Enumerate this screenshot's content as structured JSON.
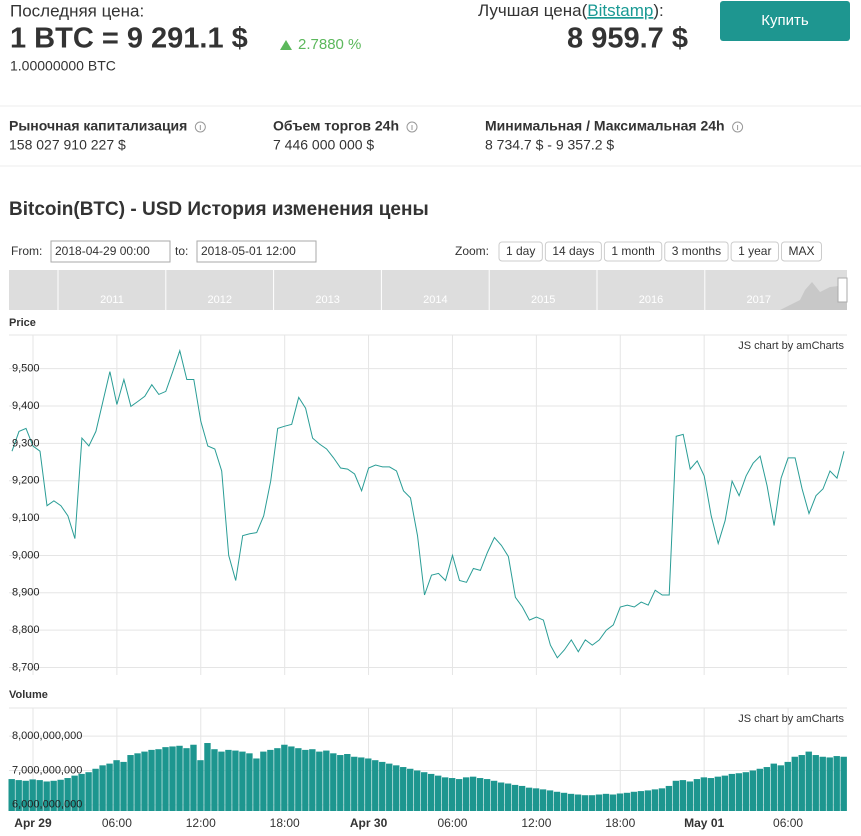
{
  "header": {
    "last_price_label": "Последняя цена:",
    "price": "1 BTC = 9 291.1 $",
    "change": "2.7880 %",
    "amount": "1.00000000 BTC",
    "best_price_prefix": "Лучшая цена(",
    "best_price_exchange": "Bitstamp",
    "best_price_suffix": "):",
    "best_price": "8 959.7 $",
    "buy_button": "Купить"
  },
  "stats": [
    {
      "label": "Рыночная капитализация",
      "value": "158 027 910 227 $"
    },
    {
      "label": "Объем торгов 24h",
      "value": "7 446 000 000 $"
    },
    {
      "label": "Минимальная / Максимальная 24h",
      "value": "8 734.7 $ - 9 357.2 $"
    }
  ],
  "chart_title": "Bitcoin(BTC) - USD История изменения цены",
  "range": {
    "from_label": "From:",
    "from": "2018-04-29 00:00",
    "to_label": "to:",
    "to": "2018-05-01 12:00"
  },
  "zoom": {
    "label": "Zoom:",
    "buttons": [
      "1 day",
      "14 days",
      "1 month",
      "3 months",
      "1 year",
      "MAX"
    ]
  },
  "navigator": {
    "years": [
      "2011",
      "2012",
      "2013",
      "2014",
      "2015",
      "2016",
      "2017"
    ]
  },
  "chart_data": [
    {
      "type": "line",
      "title": "Price",
      "credit": "JS chart by amCharts",
      "color": "#2a9d96",
      "grid": true,
      "categories": [
        null,
        null,
        null,
        "Apr 29",
        null,
        null,
        null,
        null,
        null,
        null,
        null,
        null,
        null,
        null,
        null,
        "06:00",
        null,
        null,
        null,
        null,
        null,
        null,
        null,
        null,
        null,
        null,
        null,
        "12:00",
        null,
        null,
        null,
        null,
        null,
        null,
        null,
        null,
        null,
        null,
        null,
        "18:00",
        null,
        null,
        null,
        null,
        null,
        null,
        null,
        null,
        null,
        null,
        null,
        "Apr 30",
        null,
        null,
        null,
        null,
        null,
        null,
        null,
        null,
        null,
        null,
        null,
        "06:00",
        null,
        null,
        null,
        null,
        null,
        null,
        null,
        null,
        null,
        null,
        null,
        "12:00",
        null,
        null,
        null,
        null,
        null,
        null,
        null,
        null,
        null,
        null,
        null,
        "18:00",
        null,
        null,
        null,
        null,
        null,
        null,
        null,
        null,
        null,
        null,
        null,
        "May 01",
        null,
        null,
        null,
        null,
        null,
        null,
        null,
        null,
        null,
        null,
        null,
        "06:00",
        null,
        null,
        null,
        null,
        null,
        null,
        null,
        null
      ],
      "values": [
        9279,
        9332,
        9340,
        9293,
        9279,
        9133,
        9146,
        9133,
        9106,
        9045,
        9314,
        9293,
        9332,
        9412,
        9492,
        9404,
        9471,
        9399,
        9412,
        9426,
        9457,
        9431,
        9439,
        9492,
        9548,
        9471,
        9471,
        9359,
        9293,
        9285,
        9226,
        9000,
        8933,
        9053,
        9058,
        9061,
        9106,
        9199,
        9340,
        9346,
        9351,
        9423,
        9394,
        9314,
        9298,
        9285,
        9261,
        9234,
        9231,
        9218,
        9173,
        9234,
        9242,
        9237,
        9237,
        9226,
        9173,
        9154,
        9053,
        8894,
        8947,
        8952,
        8933,
        9000,
        8933,
        8928,
        8965,
        8960,
        9008,
        9048,
        9027,
        8997,
        8888,
        8862,
        8827,
        8835,
        8827,
        8760,
        8726,
        8747,
        8774,
        8742,
        8774,
        8760,
        8774,
        8800,
        8814,
        8862,
        8867,
        8862,
        8875,
        8867,
        8907,
        8894,
        8894,
        9319,
        9324,
        9231,
        9253,
        9213,
        9106,
        9032,
        9093,
        9199,
        9160,
        9213,
        9247,
        9266,
        9186,
        9080,
        9207,
        9261,
        9261,
        9178,
        9112,
        9160,
        9178,
        9226,
        9207,
        9279
      ],
      "ylim": [
        8680,
        9590
      ],
      "yticks": [
        {
          "value": 8700,
          "label": "8,700"
        },
        {
          "value": 8800,
          "label": "8,800"
        },
        {
          "value": 8900,
          "label": "8,900"
        },
        {
          "value": 9000,
          "label": "9,000"
        },
        {
          "value": 9100,
          "label": "9,100"
        },
        {
          "value": 9200,
          "label": "9,200"
        },
        {
          "value": 9300,
          "label": "9,300"
        },
        {
          "value": 9400,
          "label": "9,400"
        },
        {
          "value": 9500,
          "label": "9,500"
        }
      ]
    },
    {
      "type": "bar",
      "title": "Volume",
      "credit": "JS chart by amCharts",
      "color": "#1d968f",
      "grid": true,
      "categories": [
        null,
        null,
        null,
        "Apr 29",
        null,
        null,
        null,
        null,
        null,
        null,
        null,
        null,
        null,
        null,
        null,
        "06:00",
        null,
        null,
        null,
        null,
        null,
        null,
        null,
        null,
        null,
        null,
        null,
        "12:00",
        null,
        null,
        null,
        null,
        null,
        null,
        null,
        null,
        null,
        null,
        null,
        "18:00",
        null,
        null,
        null,
        null,
        null,
        null,
        null,
        null,
        null,
        null,
        null,
        "Apr 30",
        null,
        null,
        null,
        null,
        null,
        null,
        null,
        null,
        null,
        null,
        null,
        "06:00",
        null,
        null,
        null,
        null,
        null,
        null,
        null,
        null,
        null,
        null,
        null,
        "12:00",
        null,
        null,
        null,
        null,
        null,
        null,
        null,
        null,
        null,
        null,
        null,
        "18:00",
        null,
        null,
        null,
        null,
        null,
        null,
        null,
        null,
        null,
        null,
        null,
        "May 01",
        null,
        null,
        null,
        null,
        null,
        null,
        null,
        null,
        null,
        null,
        null,
        "06:00",
        null,
        null,
        null,
        null,
        null,
        null,
        null,
        null
      ],
      "values": [
        6750000000,
        6720000000,
        6700000000,
        6740000000,
        6720000000,
        6680000000,
        6700000000,
        6730000000,
        6780000000,
        6850000000,
        6900000000,
        6950000000,
        7050000000,
        7150000000,
        7200000000,
        7300000000,
        7250000000,
        7450000000,
        7500000000,
        7550000000,
        7600000000,
        7620000000,
        7680000000,
        7700000000,
        7720000000,
        7650000000,
        7750000000,
        7300000000,
        7800000000,
        7620000000,
        7550000000,
        7600000000,
        7580000000,
        7550000000,
        7500000000,
        7350000000,
        7550000000,
        7600000000,
        7650000000,
        7750000000,
        7700000000,
        7650000000,
        7600000000,
        7620000000,
        7550000000,
        7580000000,
        7500000000,
        7450000000,
        7480000000,
        7400000000,
        7380000000,
        7350000000,
        7300000000,
        7250000000,
        7200000000,
        7150000000,
        7100000000,
        7050000000,
        7000000000,
        6950000000,
        6900000000,
        6850000000,
        6800000000,
        6780000000,
        6750000000,
        6800000000,
        6820000000,
        6780000000,
        6750000000,
        6700000000,
        6650000000,
        6620000000,
        6580000000,
        6550000000,
        6500000000,
        6480000000,
        6450000000,
        6420000000,
        6380000000,
        6350000000,
        6320000000,
        6300000000,
        6280000000,
        6280000000,
        6300000000,
        6320000000,
        6300000000,
        6330000000,
        6350000000,
        6380000000,
        6400000000,
        6420000000,
        6450000000,
        6480000000,
        6550000000,
        6700000000,
        6720000000,
        6680000000,
        6750000000,
        6800000000,
        6780000000,
        6820000000,
        6850000000,
        6900000000,
        6920000000,
        6950000000,
        7000000000,
        7050000000,
        7100000000,
        7200000000,
        7150000000,
        7250000000,
        7400000000,
        7450000000,
        7550000000,
        7450000000,
        7400000000,
        7380000000,
        7420000000,
        7400000000
      ],
      "ylim": [
        5820000000,
        8820000000
      ],
      "yticks": [
        {
          "value": 6000000000,
          "label": "6,000,000,000"
        },
        {
          "value": 7000000000,
          "label": "7,000,000,000"
        },
        {
          "value": 8000000000,
          "label": "8,000,000,000"
        }
      ]
    }
  ]
}
